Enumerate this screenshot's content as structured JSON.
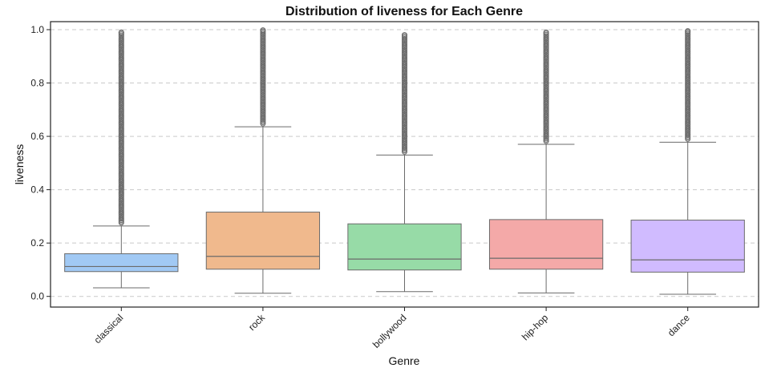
{
  "chart_data": {
    "type": "box",
    "title": "Distribution of liveness for Each Genre",
    "xlabel": "Genre",
    "ylabel": "liveness",
    "ylim": [
      -0.04,
      1.03
    ],
    "yticks": [
      0.0,
      0.2,
      0.4,
      0.6,
      0.8,
      1.0
    ],
    "ytick_labels": [
      "0.0",
      "0.2",
      "0.4",
      "0.6",
      "0.8",
      "1.0"
    ],
    "grid": "horizontal dashed",
    "categories": [
      "classical",
      "rock",
      "bollywood",
      "hip-hop",
      "dance"
    ],
    "colors": [
      "#a1c9f4",
      "#f0b98d",
      "#97dba7",
      "#f4a9a8",
      "#d0bbff"
    ],
    "series": [
      {
        "whisker_low": 0.032,
        "q1": 0.093,
        "median": 0.112,
        "q3": 0.16,
        "whisker_high": 0.264,
        "outlier_max": 0.99
      },
      {
        "whisker_low": 0.012,
        "q1": 0.102,
        "median": 0.15,
        "q3": 0.316,
        "whisker_high": 0.636,
        "outlier_max": 0.998
      },
      {
        "whisker_low": 0.018,
        "q1": 0.099,
        "median": 0.14,
        "q3": 0.272,
        "whisker_high": 0.53,
        "outlier_max": 0.98
      },
      {
        "whisker_low": 0.013,
        "q1": 0.102,
        "median": 0.143,
        "q3": 0.288,
        "whisker_high": 0.57,
        "outlier_max": 0.99
      },
      {
        "whisker_low": 0.008,
        "q1": 0.091,
        "median": 0.137,
        "q3": 0.286,
        "whisker_high": 0.578,
        "outlier_max": 0.995
      }
    ]
  }
}
